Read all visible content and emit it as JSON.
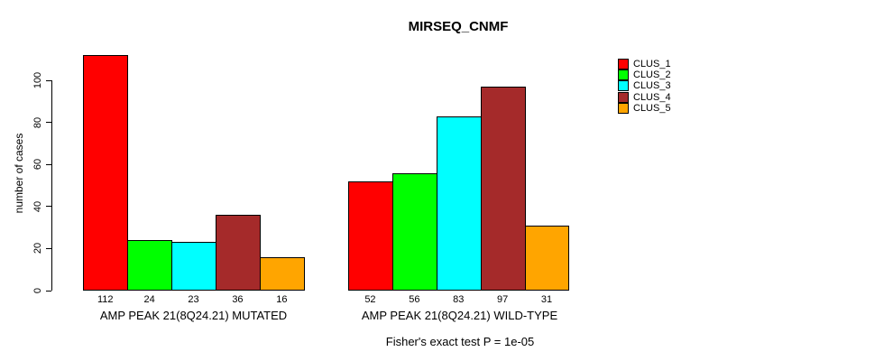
{
  "chart_data": {
    "type": "bar",
    "title": "MIRSEQ_CNMF",
    "ylabel": "number of cases",
    "xlabel": "",
    "yticks": [
      0,
      20,
      40,
      60,
      80,
      100
    ],
    "ylim": [
      0,
      112
    ],
    "grid": false,
    "legend_position": "right",
    "series": [
      "CLUS_1",
      "CLUS_2",
      "CLUS_3",
      "CLUS_4",
      "CLUS_5"
    ],
    "series_colors": [
      "#FF0000",
      "#00FF00",
      "#00FFFF",
      "#A52A2A",
      "#FFA500"
    ],
    "groups": [
      {
        "label": "AMP PEAK 21(8Q24.21) MUTATED",
        "values": [
          112,
          24,
          23,
          36,
          16
        ]
      },
      {
        "label": "AMP PEAK 21(8Q24.21) WILD-TYPE",
        "values": [
          52,
          56,
          83,
          97,
          31
        ]
      }
    ],
    "bar_value_labels_shown": true,
    "annotation": "Fisher's exact test P = 1e-05",
    "bar_border_color": "#000000",
    "background_color": "#FFFFFF",
    "text_color": "#000000"
  }
}
